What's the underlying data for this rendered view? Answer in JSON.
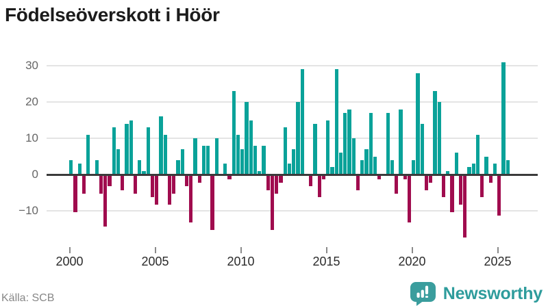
{
  "title": "Födelseöverskott i Höör",
  "source": "Källa: SCB",
  "branding": {
    "logo_text": "Newsworthy",
    "logo_icon": "bar-chart-speech-bubble-icon"
  },
  "colors": {
    "positive": "#0aa299",
    "negative": "#a00c4e",
    "brand": "#3a9d9d",
    "grid": "#e4e4e4",
    "zero_line": "#3b3b3b"
  },
  "chart_data": {
    "type": "bar",
    "title": "Födelseöverskott i Höör",
    "x_unit": "quarter",
    "x_start_year": 2000,
    "x_start_quarter": 1,
    "x_end_year": 2025,
    "x_end_quarter": 3,
    "values": [
      4,
      -10,
      3,
      -5,
      11,
      0,
      4,
      -5,
      -14,
      -3,
      13,
      7,
      -4,
      14,
      15,
      -5,
      4,
      1,
      13,
      -6,
      -8,
      16,
      11,
      -8,
      -5,
      4,
      7,
      -3,
      -13,
      10,
      -2,
      8,
      8,
      -15,
      10,
      0,
      3,
      -1,
      23,
      11,
      7,
      20,
      15,
      8,
      1,
      8,
      -4,
      -15,
      -5,
      -2,
      13,
      3,
      7,
      20,
      29,
      0,
      -3,
      14,
      -6,
      -1,
      15,
      2,
      29,
      6,
      17,
      18,
      10,
      -4,
      4,
      7,
      17,
      5,
      -1,
      0,
      17,
      4,
      -5,
      18,
      -1,
      -13,
      4,
      28,
      14,
      -4,
      -2,
      23,
      20,
      -6,
      1,
      -10,
      6,
      -8,
      -17,
      2,
      3,
      11,
      -6,
      5,
      -2,
      3,
      -11,
      31,
      4
    ],
    "x_tick_labels": [
      "2000",
      "2005",
      "2010",
      "2015",
      "2020",
      "2025"
    ],
    "y_ticks": [
      30,
      20,
      10,
      0,
      -10
    ],
    "ylim": [
      -18,
      32
    ],
    "legend": "none",
    "grid": true
  }
}
